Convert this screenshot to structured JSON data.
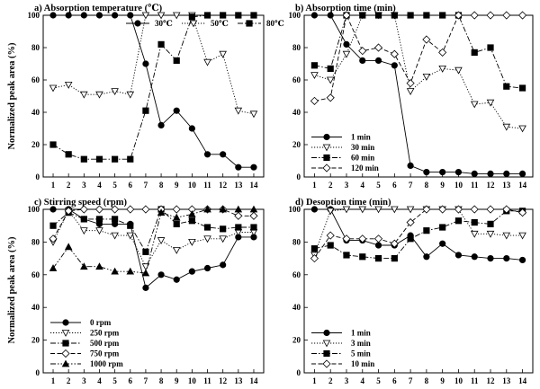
{
  "figure": {
    "ylabel": "Normalized peak area (%)"
  },
  "chart_data": [
    {
      "id": "a",
      "type": "line",
      "title": "a) Absorption temperature (℃)",
      "xlabel": "",
      "ylabel": "Normalized peak area (%)",
      "x": [
        1,
        2,
        3,
        4,
        5,
        6,
        7,
        8,
        9,
        10,
        11,
        12,
        13,
        14
      ],
      "xticks": [
        "1",
        "2",
        "3",
        "4",
        "5",
        "6",
        "7",
        "8",
        "9",
        "10",
        "11",
        "12",
        "13",
        "14"
      ],
      "ylim": [
        0,
        100
      ],
      "yticks": [
        "0",
        "20",
        "40",
        "60",
        "80",
        "100"
      ],
      "legend_position": "top-right",
      "legend_layout": "row",
      "series": [
        {
          "name": "30℃",
          "marker": "circle",
          "dash": "solid",
          "values": [
            100,
            100,
            100,
            100,
            100,
            100,
            70,
            32,
            41,
            30,
            14,
            14,
            6,
            6
          ]
        },
        {
          "name": "50℃",
          "marker": "triangle-down",
          "dash": "dotted",
          "values": [
            55,
            57,
            51,
            51,
            53,
            51,
            100,
            100,
            100,
            100,
            71,
            76,
            41,
            39
          ]
        },
        {
          "name": "80℃",
          "marker": "square",
          "dash": "dashdot",
          "values": [
            20,
            14,
            11,
            11,
            11,
            11,
            41,
            82,
            72,
            99,
            100,
            100,
            100,
            100
          ]
        }
      ]
    },
    {
      "id": "b",
      "type": "line",
      "title": "b) Absorption time (min)",
      "xlabel": "",
      "ylabel": "",
      "x": [
        1,
        2,
        3,
        4,
        5,
        6,
        7,
        8,
        9,
        10,
        11,
        12,
        13,
        14
      ],
      "xticks": [
        "1",
        "2",
        "3",
        "4",
        "5",
        "6",
        "7",
        "8",
        "9",
        "10",
        "11",
        "12",
        "13",
        "14"
      ],
      "ylim": [
        0,
        100
      ],
      "yticks": [
        "0",
        "20",
        "40",
        "60",
        "80",
        "100"
      ],
      "legend_position": "bottom-left",
      "legend_layout": "column",
      "series": [
        {
          "name": "1 min",
          "marker": "circle",
          "dash": "solid",
          "values": [
            100,
            100,
            82,
            72,
            72,
            69,
            7,
            3,
            3,
            3,
            2,
            2,
            2,
            2
          ]
        },
        {
          "name": "30 min",
          "marker": "triangle-down",
          "dash": "dotted",
          "values": [
            63,
            60,
            76,
            100,
            100,
            100,
            53,
            62,
            67,
            66,
            45,
            46,
            31,
            30
          ]
        },
        {
          "name": "60 min",
          "marker": "square",
          "dash": "dashdot",
          "values": [
            69,
            67,
            100,
            100,
            100,
            100,
            100,
            100,
            100,
            100,
            77,
            80,
            56,
            55
          ]
        },
        {
          "name": "120 min",
          "marker": "diamond",
          "dash": "dashed",
          "values": [
            47,
            49,
            100,
            78,
            80,
            76,
            58,
            85,
            77,
            100,
            100,
            100,
            100,
            100
          ]
        }
      ]
    },
    {
      "id": "c",
      "type": "line",
      "title": "c) Stirring speed (rpm)",
      "xlabel": "",
      "ylabel": "Normalized peak area (%)",
      "x": [
        1,
        2,
        3,
        4,
        5,
        6,
        7,
        8,
        9,
        10,
        11,
        12,
        13,
        14
      ],
      "xticks": [
        "1",
        "2",
        "3",
        "4",
        "5",
        "6",
        "7",
        "8",
        "9",
        "10",
        "11",
        "12",
        "13",
        "14"
      ],
      "ylim": [
        0,
        100
      ],
      "yticks": [
        "0",
        "20",
        "40",
        "60",
        "80",
        "100"
      ],
      "legend_position": "bottom-left",
      "legend_layout": "column",
      "series": [
        {
          "name": "0 rpm",
          "marker": "circle",
          "dash": "solid",
          "values": [
            100,
            100,
            94,
            91,
            91,
            91,
            52,
            60,
            57,
            62,
            64,
            66,
            83,
            83
          ]
        },
        {
          "name": "250 rpm",
          "marker": "triangle-down",
          "dash": "dotted",
          "values": [
            80,
            99,
            87,
            87,
            84,
            84,
            65,
            81,
            75,
            80,
            82,
            82,
            86,
            86
          ]
        },
        {
          "name": "500 rpm",
          "marker": "square",
          "dash": "dashdot",
          "values": [
            90,
            98,
            94,
            94,
            94,
            90,
            74,
            100,
            91,
            93,
            89,
            88,
            89,
            89
          ]
        },
        {
          "name": "750 rpm",
          "marker": "diamond",
          "dash": "dashed",
          "values": [
            82,
            99,
            100,
            100,
            100,
            100,
            100,
            100,
            100,
            100,
            100,
            100,
            96,
            96
          ]
        },
        {
          "name": "1000 rpm",
          "marker": "triangle-up",
          "dash": "dashdotdot",
          "values": [
            64,
            77,
            65,
            65,
            62,
            62,
            61,
            98,
            95,
            97,
            100,
            100,
            100,
            100
          ]
        }
      ]
    },
    {
      "id": "d",
      "type": "line",
      "title": "d) Desoption time (min)",
      "xlabel": "",
      "ylabel": "",
      "x": [
        1,
        2,
        3,
        4,
        5,
        6,
        7,
        8,
        9,
        10,
        11,
        12,
        13,
        14
      ],
      "xticks": [
        "1",
        "2",
        "3",
        "4",
        "5",
        "6",
        "7",
        "8",
        "9",
        "10",
        "11",
        "12",
        "13",
        "14"
      ],
      "ylim": [
        0,
        100
      ],
      "yticks": [
        "0",
        "20",
        "40",
        "60",
        "80",
        "100"
      ],
      "legend_position": "bottom-left",
      "legend_layout": "column",
      "series": [
        {
          "name": "1 min",
          "marker": "circle",
          "dash": "solid",
          "values": [
            100,
            100,
            81,
            81,
            78,
            78,
            84,
            71,
            79,
            72,
            71,
            70,
            70,
            69
          ]
        },
        {
          "name": "3 min",
          "marker": "triangle-down",
          "dash": "dotted",
          "values": [
            72,
            99,
            100,
            100,
            100,
            100,
            100,
            100,
            100,
            100,
            85,
            85,
            84,
            84
          ]
        },
        {
          "name": "5 min",
          "marker": "square",
          "dash": "dashdot",
          "values": [
            76,
            78,
            72,
            71,
            70,
            70,
            82,
            87,
            89,
            93,
            92,
            91,
            99,
            99
          ]
        },
        {
          "name": "10 min",
          "marker": "diamond",
          "dash": "dashed",
          "values": [
            70,
            84,
            82,
            82,
            82,
            79,
            92,
            100,
            100,
            100,
            100,
            100,
            100,
            98
          ]
        }
      ]
    }
  ]
}
